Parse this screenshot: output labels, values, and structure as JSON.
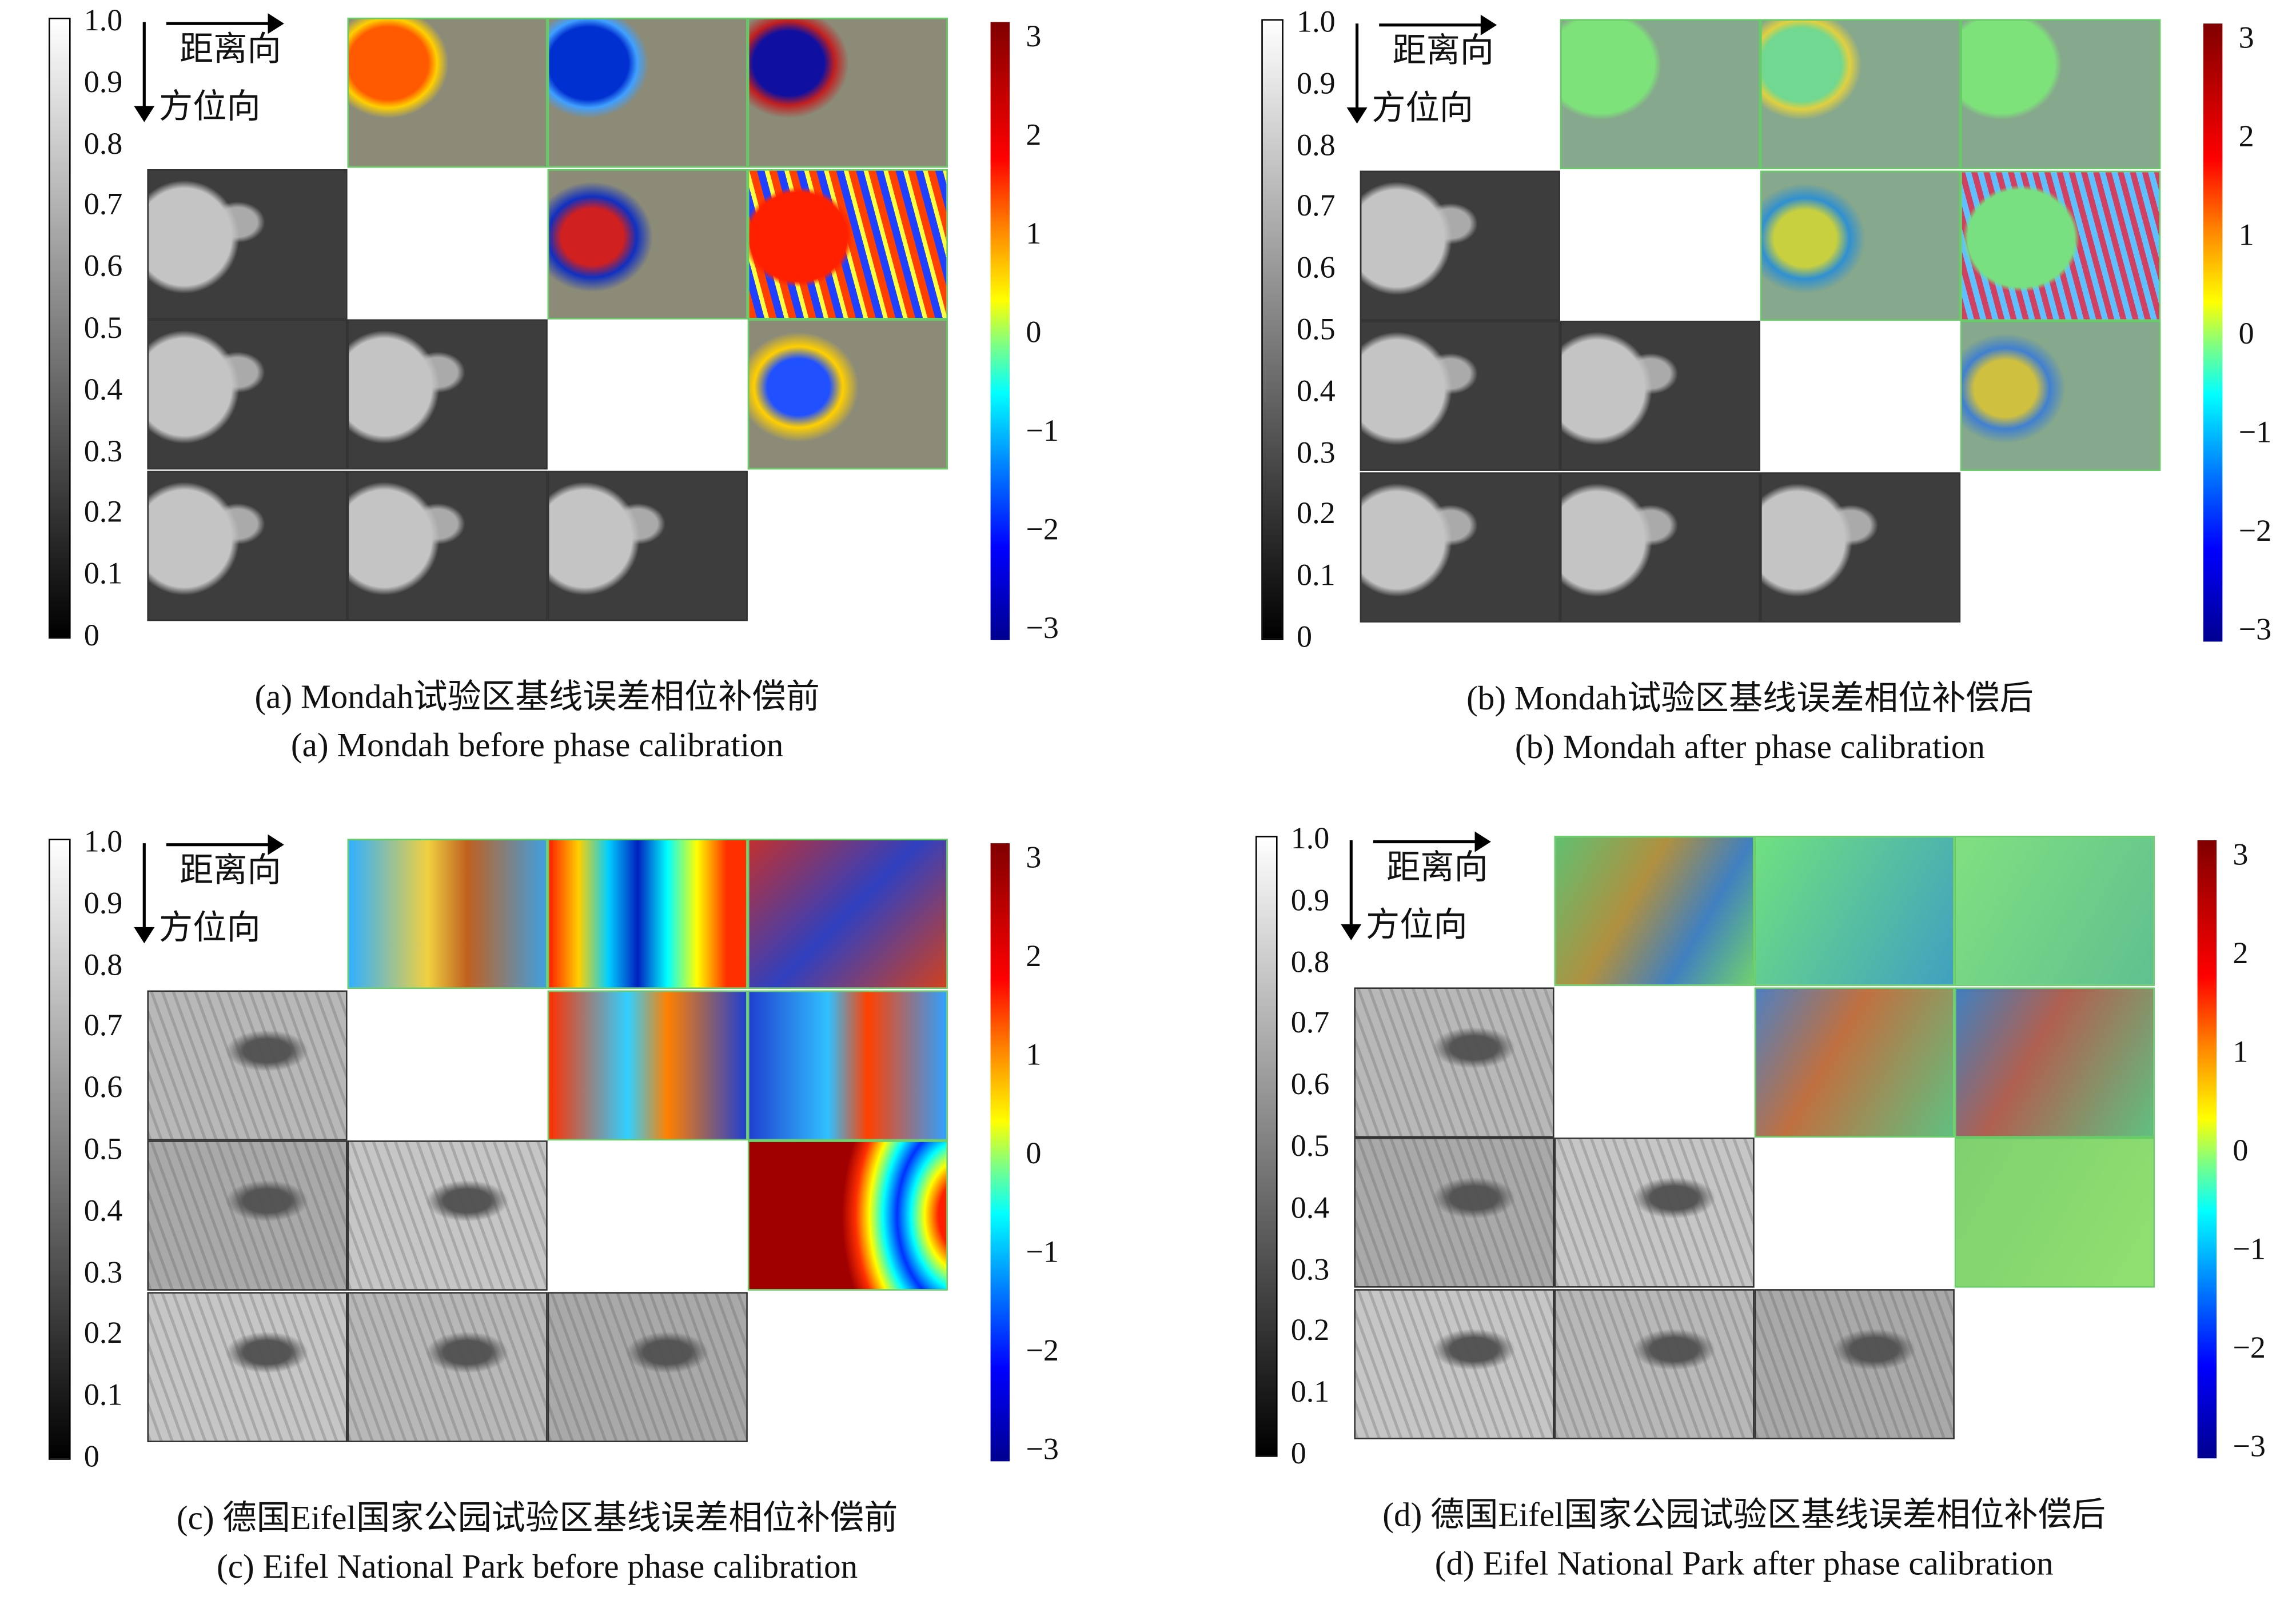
{
  "figure": {
    "range_direction_label": "距离向",
    "azimuth_direction_label": "方位向",
    "coherence_colorbar_ticks": [
      "1.0",
      "0.9",
      "0.8",
      "0.7",
      "0.6",
      "0.5",
      "0.4",
      "0.3",
      "0.2",
      "0.1",
      "0"
    ],
    "phase_colorbar_ticks": [
      "3",
      "2",
      "1",
      "0",
      "−1",
      "−2",
      "−3"
    ],
    "panels": [
      {
        "id": "a",
        "caption_cn": "(a) Mondah试验区基线误差相位补偿前",
        "caption_en": "(a) Mondah before phase calibration"
      },
      {
        "id": "b",
        "caption_cn": "(b) Mondah试验区基线误差相位补偿后",
        "caption_en": "(b) Mondah after phase calibration"
      },
      {
        "id": "c",
        "caption_cn": "(c) 德国Eifel国家公园试验区基线误差相位补偿前",
        "caption_en": "(c) Eifel National Park before phase calibration"
      },
      {
        "id": "d",
        "caption_cn": "(d) 德国Eifel国家公园试验区基线误差相位补偿后",
        "caption_en": "(d) Eifel National Park after phase calibration"
      }
    ]
  }
}
